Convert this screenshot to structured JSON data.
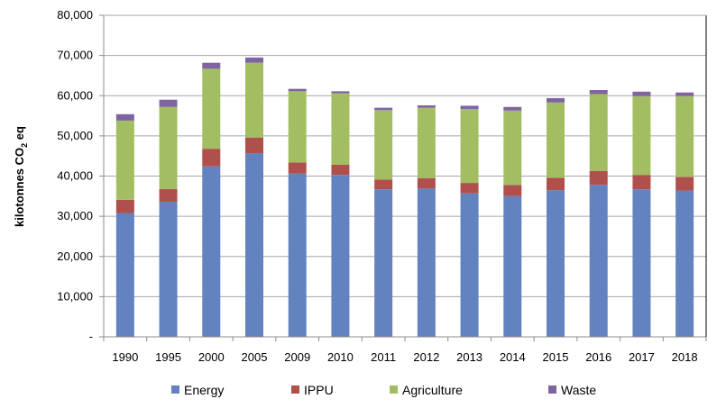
{
  "chart_data": {
    "type": "bar",
    "stacked": true,
    "title": "",
    "xlabel": "",
    "ylabel": "kilotonnes CO2 eq",
    "ylabel_parts": {
      "main": "kilotonnes CO",
      "sub": "2",
      "tail": " eq"
    },
    "ylim": [
      0,
      80000
    ],
    "yticks": [
      0,
      10000,
      20000,
      30000,
      40000,
      50000,
      60000,
      70000,
      80000
    ],
    "ytick_labels": [
      "-",
      "10,000",
      "20,000",
      "30,000",
      "40,000",
      "50,000",
      "60,000",
      "70,000",
      "80,000"
    ],
    "grid": true,
    "legend_position": "bottom",
    "categories": [
      "1990",
      "1995",
      "2000",
      "2005",
      "2009",
      "2010",
      "2011",
      "2012",
      "2013",
      "2014",
      "2015",
      "2016",
      "2017",
      "2018"
    ],
    "series": [
      {
        "name": "Energy",
        "color": "#6282C0",
        "values": [
          30800,
          33600,
          42400,
          45700,
          40600,
          40300,
          36700,
          36900,
          35700,
          35000,
          36500,
          37800,
          36700,
          36400
        ]
      },
      {
        "name": "IPPU",
        "color": "#B0504D",
        "values": [
          3300,
          3200,
          4400,
          3900,
          2800,
          2500,
          2400,
          2600,
          2600,
          2800,
          3100,
          3500,
          3600,
          3400
        ]
      },
      {
        "name": "Agriculture",
        "color": "#A3BE62",
        "values": [
          19700,
          20400,
          19900,
          18600,
          17700,
          17800,
          17300,
          17500,
          18400,
          18500,
          18700,
          19100,
          19600,
          20100
        ]
      },
      {
        "name": "Waste",
        "color": "#8064A2",
        "values": [
          1600,
          1800,
          1500,
          1300,
          600,
          500,
          600,
          600,
          800,
          900,
          1100,
          1000,
          1100,
          900
        ]
      }
    ]
  }
}
